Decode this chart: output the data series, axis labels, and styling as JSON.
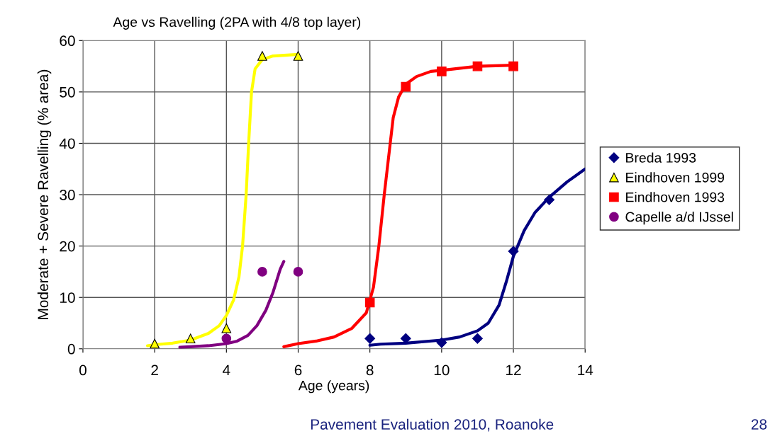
{
  "chart_data": {
    "type": "scatter",
    "title": "Age vs Ravelling (2PA with 4/8 top layer)",
    "xlabel": "Age (years)",
    "ylabel": "Moderate + Severe Ravelling (% area)",
    "xlim": [
      0,
      14
    ],
    "xticks": [
      0,
      2,
      4,
      6,
      8,
      10,
      12,
      14
    ],
    "ylim": [
      0,
      60
    ],
    "yticks": [
      0,
      10,
      20,
      30,
      40,
      50,
      60
    ],
    "grid": true,
    "legend": "right",
    "annotations": [
      "Pavement Evaluation 2010, Roanoke",
      "28"
    ],
    "series": [
      {
        "name": "Breda 1993",
        "color": "#000080",
        "marker": "diamond",
        "x": [
          8,
          9,
          10,
          11,
          12,
          13
        ],
        "values": [
          2,
          2,
          1.2,
          2,
          19,
          29
        ]
      },
      {
        "name": "Eindhoven 1999",
        "color": "#ffff00",
        "marker": "triangle",
        "x": [
          2,
          3,
          4,
          5,
          6
        ],
        "values": [
          1,
          2,
          4,
          57,
          57
        ]
      },
      {
        "name": "Eindhoven 1993",
        "color": "#ff0000",
        "marker": "square",
        "x": [
          8,
          9,
          10,
          11,
          12
        ],
        "values": [
          9,
          51,
          54,
          55,
          55
        ]
      },
      {
        "name": "Capelle a/d IJssel",
        "color": "#800080",
        "marker": "circle",
        "x": [
          4,
          5,
          6
        ],
        "values": [
          2,
          15,
          15
        ]
      },
      {
        "type": "line",
        "color": "#ffff00",
        "marker": "none",
        "x": [
          1.8,
          2,
          2.5,
          3,
          3.5,
          3.8,
          4,
          4.2,
          4.35,
          4.45,
          4.55,
          4.62,
          4.7,
          4.8,
          5,
          5.3,
          6
        ],
        "values": [
          0.6,
          0.8,
          1.1,
          1.7,
          3,
          4.5,
          6.5,
          9.5,
          14,
          20,
          30,
          40,
          50,
          54.5,
          56.3,
          57,
          57.3
        ]
      },
      {
        "type": "line",
        "color": "#800080",
        "marker": "none",
        "x": [
          2.7,
          3,
          3.5,
          4,
          4.3,
          4.6,
          4.85,
          5.1,
          5.3,
          5.5,
          5.6
        ],
        "values": [
          0.3,
          0.4,
          0.6,
          1,
          1.5,
          2.6,
          4.5,
          7.5,
          11,
          15.5,
          17
        ]
      },
      {
        "type": "line",
        "color": "#ff0000",
        "marker": "none",
        "x": [
          5.6,
          6,
          6.5,
          7,
          7.5,
          7.9,
          8.1,
          8.25,
          8.4,
          8.5,
          8.65,
          8.8,
          9,
          9.3,
          9.7,
          10,
          11,
          12
        ],
        "values": [
          0.4,
          1.0,
          1.5,
          2.3,
          4,
          7,
          12,
          20,
          30,
          36,
          45,
          49,
          51.5,
          53,
          54,
          54.2,
          55,
          55.2
        ]
      },
      {
        "type": "line",
        "color": "#000080",
        "marker": "none",
        "x": [
          8,
          8.3,
          9,
          10,
          10.5,
          11,
          11.3,
          11.6,
          11.8,
          12,
          12.3,
          12.6,
          13,
          13.5,
          14
        ],
        "values": [
          0.7,
          0.9,
          1.1,
          1.7,
          2.3,
          3.5,
          5,
          8.5,
          13,
          18,
          23,
          26.5,
          29.5,
          32.5,
          35
        ]
      }
    ]
  }
}
